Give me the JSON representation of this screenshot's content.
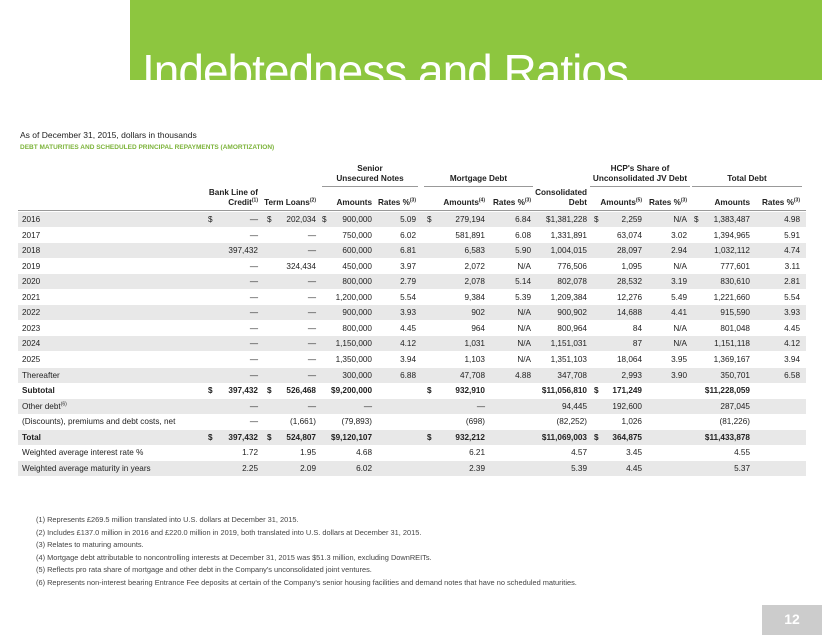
{
  "header": {
    "title": "Indebtedness and Ratios",
    "subtitle": "As of December 31, 2015, dollars in thousands",
    "section": "DEBT MATURITIES AND SCHEDULED PRINCIPAL REPAYMENTS (AMORTIZATION)"
  },
  "table": {
    "groups": [
      {
        "lines": [
          "Senior",
          "Unsecured Notes"
        ]
      },
      {
        "lines": [
          "Mortgage Debt"
        ]
      },
      {
        "lines": [
          "HCP's Share of",
          "Unconsolidated JV Debt"
        ]
      },
      {
        "lines": [
          "Total Debt"
        ]
      }
    ],
    "columns": [
      {
        "lines": [
          "Bank Line of",
          "Credit"
        ],
        "note": "(1)"
      },
      {
        "lines": [
          "Term Loans"
        ],
        "note": "(2)"
      },
      {
        "lines": [
          "Amounts"
        ]
      },
      {
        "lines": [
          "Rates %"
        ],
        "note": "(3)"
      },
      {
        "lines": [
          "Amounts"
        ],
        "note": "(4)"
      },
      {
        "lines": [
          "Rates %"
        ],
        "note": "(3)"
      },
      {
        "lines": [
          "Consolidated",
          "Debt"
        ]
      },
      {
        "lines": [
          "Amounts"
        ],
        "note": "(5)"
      },
      {
        "lines": [
          "Rates %"
        ],
        "note": "(3)"
      },
      {
        "lines": [
          "Amounts"
        ]
      },
      {
        "lines": [
          "Rates %"
        ],
        "note": "(3)"
      }
    ],
    "rows": [
      {
        "label": "2016",
        "cells": [
          [
            "$",
            "—"
          ],
          [
            "$",
            "202,034"
          ],
          [
            "$",
            "900,000"
          ],
          "5.09",
          [
            "$",
            "279,194"
          ],
          "6.84",
          "$1,381,228",
          [
            "$",
            "2,259"
          ],
          "N/A",
          [
            "$",
            "1,383,487"
          ],
          "4.98"
        ]
      },
      {
        "label": "2017",
        "cells": [
          "—",
          "—",
          "750,000",
          "6.02",
          "581,891",
          "6.08",
          "1,331,891",
          "63,074",
          "3.02",
          "1,394,965",
          "5.91"
        ]
      },
      {
        "label": "2018",
        "cells": [
          "397,432",
          "—",
          "600,000",
          "6.81",
          "6,583",
          "5.90",
          "1,004,015",
          "28,097",
          "2.94",
          "1,032,112",
          "4.74"
        ]
      },
      {
        "label": "2019",
        "cells": [
          "—",
          "324,434",
          "450,000",
          "3.97",
          "2,072",
          "N/A",
          "776,506",
          "1,095",
          "N/A",
          "777,601",
          "3.11"
        ]
      },
      {
        "label": "2020",
        "cells": [
          "—",
          "—",
          "800,000",
          "2.79",
          "2,078",
          "5.14",
          "802,078",
          "28,532",
          "3.19",
          "830,610",
          "2.81"
        ]
      },
      {
        "label": "2021",
        "cells": [
          "—",
          "—",
          "1,200,000",
          "5.54",
          "9,384",
          "5.39",
          "1,209,384",
          "12,276",
          "5.49",
          "1,221,660",
          "5.54"
        ]
      },
      {
        "label": "2022",
        "cells": [
          "—",
          "—",
          "900,000",
          "3.93",
          "902",
          "N/A",
          "900,902",
          "14,688",
          "4.41",
          "915,590",
          "3.93"
        ]
      },
      {
        "label": "2023",
        "cells": [
          "—",
          "—",
          "800,000",
          "4.45",
          "964",
          "N/A",
          "800,964",
          "84",
          "N/A",
          "801,048",
          "4.45"
        ]
      },
      {
        "label": "2024",
        "cells": [
          "—",
          "—",
          "1,150,000",
          "4.12",
          "1,031",
          "N/A",
          "1,151,031",
          "87",
          "N/A",
          "1,151,118",
          "4.12"
        ]
      },
      {
        "label": "2025",
        "cells": [
          "—",
          "—",
          "1,350,000",
          "3.94",
          "1,103",
          "N/A",
          "1,351,103",
          "18,064",
          "3.95",
          "1,369,167",
          "3.94"
        ]
      },
      {
        "label": "Thereafter",
        "cells": [
          "—",
          "—",
          "300,000",
          "6.88",
          "47,708",
          "4.88",
          "347,708",
          "2,993",
          "3.90",
          "350,701",
          "6.58"
        ]
      },
      {
        "label": "Subtotal",
        "bold": true,
        "cells": [
          [
            "$",
            "397,432"
          ],
          [
            "$",
            "526,468"
          ],
          "$9,200,000",
          null,
          [
            "$",
            "932,910"
          ],
          null,
          "$11,056,810",
          [
            "$",
            "171,249"
          ],
          null,
          "$11,228,059",
          null
        ]
      },
      {
        "label": "Other debt",
        "note": "(6)",
        "cells": [
          "—",
          "—",
          "—",
          null,
          "—",
          null,
          "94,445",
          "192,600",
          null,
          "287,045",
          null
        ]
      },
      {
        "label": "(Discounts), premiums and debt costs, net",
        "cells": [
          "—",
          "(1,661)",
          "(79,893)",
          null,
          "(698)",
          null,
          "(82,252)",
          "1,026",
          null,
          "(81,226)",
          null
        ]
      },
      {
        "label": "Total",
        "bold": true,
        "cells": [
          [
            "$",
            "397,432"
          ],
          [
            "$",
            "524,807"
          ],
          "$9,120,107",
          null,
          [
            "$",
            "932,212"
          ],
          null,
          "$11,069,003",
          [
            "$",
            "364,875"
          ],
          null,
          "$11,433,878",
          null
        ]
      },
      {
        "label": "Weighted average interest rate %",
        "cells": [
          "1.72",
          "1.95",
          "4.68",
          null,
          "6.21",
          null,
          "4.57",
          "3.45",
          null,
          "4.55",
          null
        ]
      },
      {
        "label": "Weighted average maturity in years",
        "cells": [
          "2.25",
          "2.09",
          "6.02",
          null,
          "2.39",
          null,
          "5.39",
          "4.45",
          null,
          "5.37",
          null
        ]
      }
    ]
  },
  "footnotes": [
    "(1) Represents £269.5 million translated into U.S. dollars at December 31, 2015.",
    "(2) Includes £137.0 million in 2016 and £220.0 million in 2019, both translated into U.S. dollars at December 31, 2015.",
    "(3) Relates to maturing amounts.",
    "(4) Mortgage debt attributable to noncontrolling interests at December 31, 2015 was $51.3 million, excluding DownREITs.",
    "(5) Reflects pro rata share of mortgage and other debt in the Company's unconsolidated joint ventures.",
    "(6) Represents non-interest bearing Entrance Fee deposits at certain of the Company's senior housing facilities and demand notes that have no scheduled maturities."
  ],
  "page_number": "12"
}
